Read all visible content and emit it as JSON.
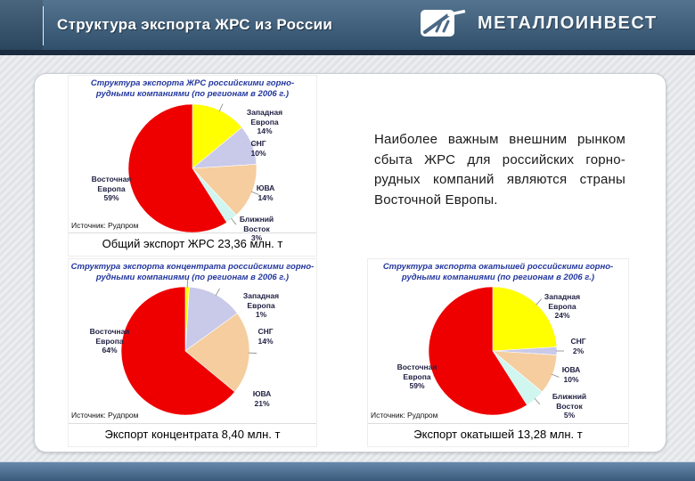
{
  "header": {
    "title": "Структура экспорта ЖРС из России",
    "logo_text": "МЕТАЛЛОИНВЕСТ",
    "logo_icon": "metalloinvest-monogram"
  },
  "note_text": "Наиболее важным внешним рынком сбыта ЖРС для российских горно-рудных компаний являются страны Восточной Европы.",
  "colors": {
    "east_europe_red": "#EE0000",
    "west_europe_yellow": "#FFFF00",
    "cis_lavender": "#C9C9EA",
    "sea_peach": "#F5CD9E",
    "middle_east_cyan": "#D0F6EF",
    "chart_title_blue": "#23379E",
    "header_blue": "#31506C",
    "footer_blue": "#395879"
  },
  "chart_data": [
    {
      "type": "pie",
      "title": "Структура экспорта ЖРС российскими горно-рудными компаниями (по регионам в 2006 г.)",
      "title_lines": [
        "Структура экспорта ЖРС российскими горно-",
        "рудными компаниями (по регионам в 2006 г.)"
      ],
      "slices": [
        {
          "label": "Западная Европа",
          "pct": 14,
          "pct_label": "14%",
          "color": "#FFFF00"
        },
        {
          "label": "СНГ",
          "pct": 10,
          "pct_label": "10%",
          "color": "#C9C9EA"
        },
        {
          "label": "ЮВА",
          "pct": 14,
          "pct_label": "14%",
          "color": "#F5CD9E"
        },
        {
          "label": "Ближний Восток",
          "pct": 3,
          "pct_label": "3%",
          "color": "#D0F6EF"
        },
        {
          "label": "Восточная Европа",
          "pct": 59,
          "pct_label": "59%",
          "color": "#EE0000"
        }
      ],
      "source": "Источник: Рудпром",
      "caption": "Общий экспорт ЖРС 23,36 млн. т"
    },
    {
      "type": "pie",
      "title": "Структура экспорта концентрата российскими горно-рудными компаниями (по регионам в 2006 г.)",
      "title_lines": [
        "Структура экспорта концентрата российскими горно-",
        "рудными компаниями (по регионам в 2006 г.)"
      ],
      "slices": [
        {
          "label": "Западная Европа",
          "pct": 1,
          "pct_label": "1%",
          "color": "#FFFF00"
        },
        {
          "label": "СНГ",
          "pct": 14,
          "pct_label": "14%",
          "color": "#C9C9EA"
        },
        {
          "label": "ЮВА",
          "pct": 21,
          "pct_label": "21%",
          "color": "#F5CD9E"
        },
        {
          "label": "Восточная Европа",
          "pct": 64,
          "pct_label": "64%",
          "color": "#EE0000"
        }
      ],
      "source": "Источник: Рудпром",
      "caption": "Экспорт концентрата 8,40 млн. т"
    },
    {
      "type": "pie",
      "title": "Структура экспорта окатышей российскими горно-рудными компаниями (по регионам в 2006 г.)",
      "title_lines": [
        "Структура экспорта окатышей российскими горно-",
        "рудными компаниями (по регионам в 2006 г.)"
      ],
      "slices": [
        {
          "label": "Западная Европа",
          "pct": 24,
          "pct_label": "24%",
          "color": "#FFFF00"
        },
        {
          "label": "СНГ",
          "pct": 2,
          "pct_label": "2%",
          "color": "#C9C9EA"
        },
        {
          "label": "ЮВА",
          "pct": 10,
          "pct_label": "10%",
          "color": "#F5CD9E"
        },
        {
          "label": "Ближний Восток",
          "pct": 5,
          "pct_label": "5%",
          "color": "#D0F6EF"
        },
        {
          "label": "Восточная Европа",
          "pct": 59,
          "pct_label": "59%",
          "color": "#EE0000"
        }
      ],
      "source": "Источник: Рудпром",
      "caption": "Экспорт окатышей 13,28 млн. т"
    }
  ]
}
